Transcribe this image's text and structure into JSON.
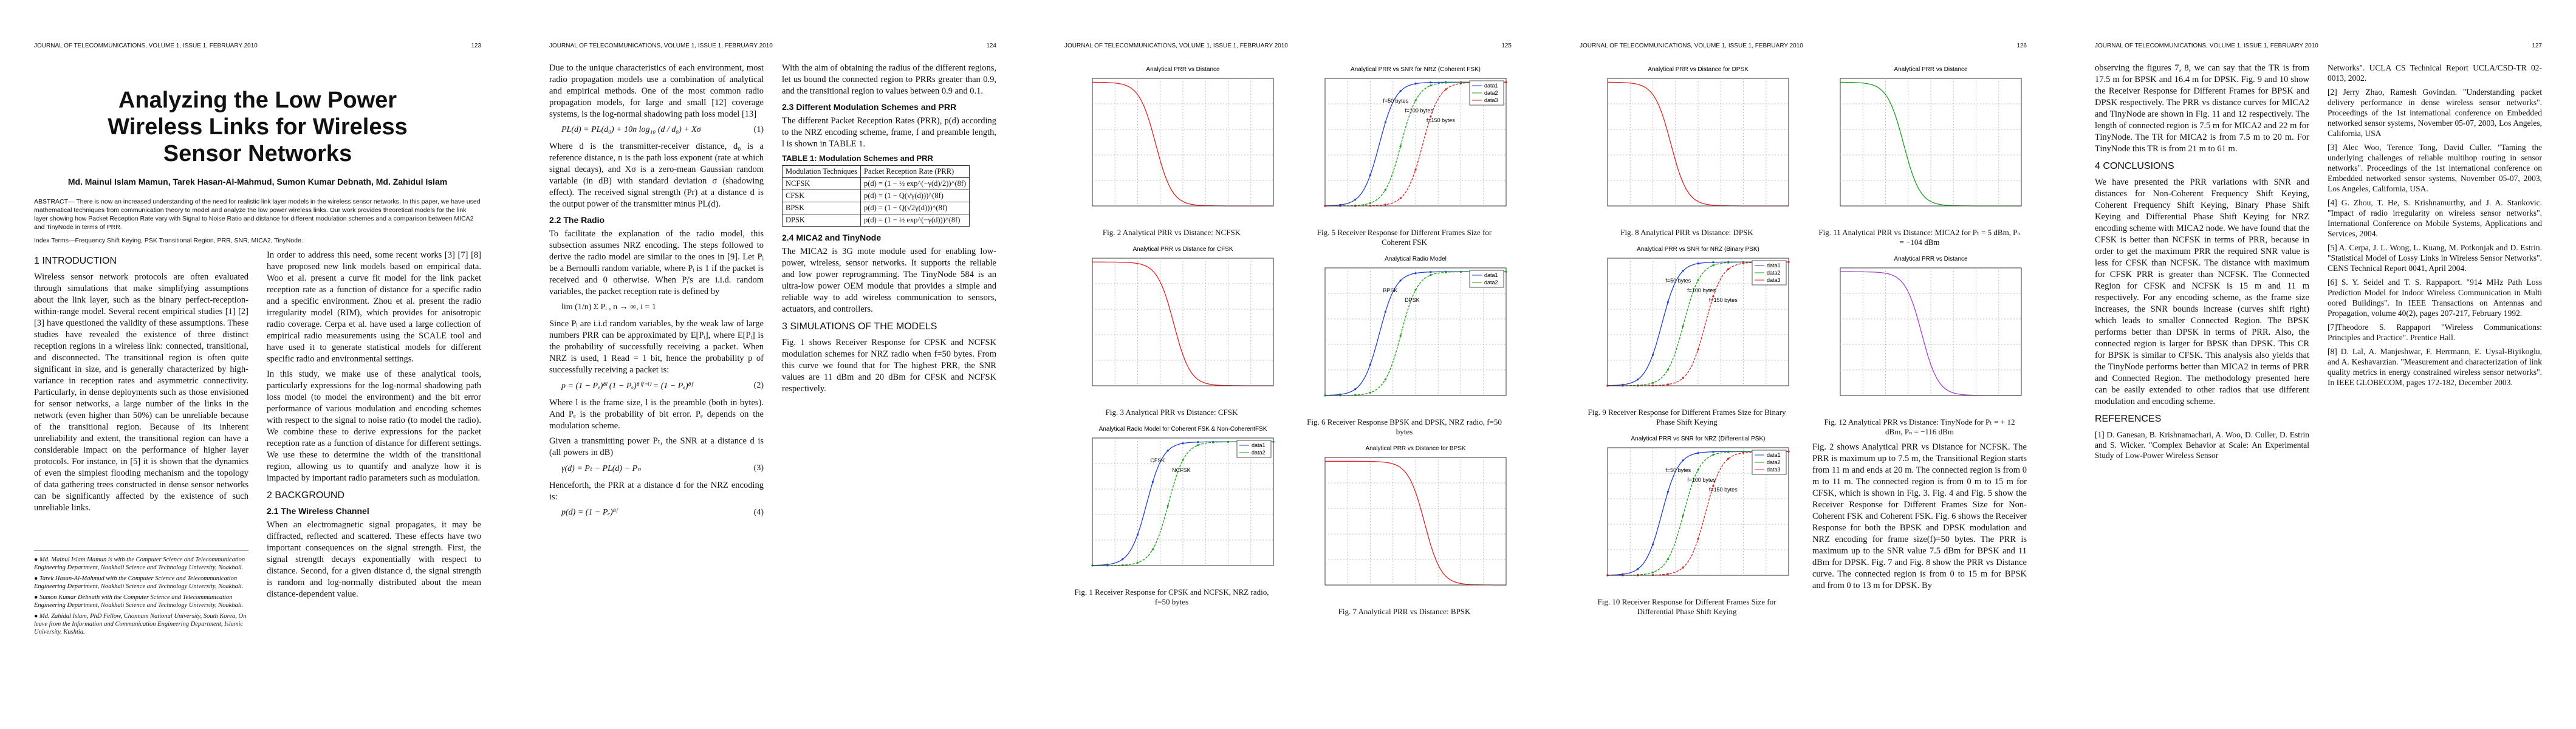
{
  "pages": [
    {
      "header": "JOURNAL OF TELECOMMUNICATIONS, VOLUME 1, ISSUE 1, FEBRUARY 2010",
      "page_number": "123",
      "title": "Analyzing the Low Power Wireless Links for Wireless Sensor Networks",
      "authors": "Md. Mainul Islam Mamun, Tarek Hasan-Al-Mahmud, Sumon Kumar Debnath, Md. Zahidul Islam",
      "abstract": "ABSTRACT— There is now an increased understanding of the need for realistic link layer models in the wireless sensor networks. In this paper, we have used mathematical techniques from communication theory to model and analyze the low power wireless links. Our work provides theoretical models for the link layer showing how Packet Reception Rate vary with Signal to Noise Ratio and distance for different modulation schemes and a comparison between MICA2 and TinyNode in terms of PRR.",
      "index_terms": "Index Terms—Frequency Shift Keying, PSK Transitional Region, PRR, SNR, MICA2, TinyNode.",
      "columns": [
        [
          {
            "heading": "1 INTRODUCTION"
          },
          {
            "paragraph": "Wireless sensor network protocols are often evaluated through simulations that make simplifying assumptions about the link layer, such as the binary perfect-reception-within-range model. Several recent empirical studies [1] [2] [3] have questioned the validity of these assumptions. These studies have revealed the existence of three distinct reception regions in a wireless link: connected, transitional, and disconnected. The transitional region is often quite significant in size, and is generally characterized by high-variance in reception rates and asymmetric connectivity. Particularly, in dense deployments such as those envisioned for sensor networks, a large number of the links in the network (even higher than 50%) can be unreliable because of the transitional region. Because of its inherent unreliability and extent, the transitional region can have a considerable impact on the performance of higher layer protocols. For instance, in [5] it is shown that the dynamics of even the simplest flooding mechanism and the topology of data gathering trees constructed in dense sensor networks can be significantly affected by the existence of such unreliable links."
          },
          {
            "footnotes": [
              "● Md. Mainul Islam Mamun is with the Computer Science and Telecommunication Engineering Department, Noakhali Science and Technology University, Noakhali.",
              "● Tarek Hasan-Al-Mahmud with the Computer Science and Telecommunication Engineering Department, Noakhali Science and Technology University, Noakhali.",
              "● Sumon Kumar Debnath with the Computer Science and Telecommunication Engineering Department, Noakhali Science and Technology University, Noakhali.",
              "● Md. Zahidul Islam, PhD Fellow, Chonnam National University, South Korea, On leave from the Information and Communication Engineering Department, Islamic University, Kushtia."
            ]
          }
        ],
        [
          {
            "paragraph": "In order to address this need, some recent works [3] [7] [8] have proposed new link models based on empirical data. Woo et al. present a curve fit model for the link packet reception rate as a function of distance for a specific radio and a specific environment. Zhou et al. present the radio irregularity model (RIM), which provides for anisotropic radio coverage. Cerpa et al. have used a large collection of empirical radio measurements using the SCALE tool and have used it to generate statistical models for different specific radio and environmental settings."
          },
          {
            "paragraph": "In this study, we make use of these analytical tools, particularly expressions for the log-normal shadowing path loss model (to model the environment) and the bit error performance of various modulation and encoding schemes with respect to the signal to noise ratio (to model the radio). We combine these to derive expressions for the packet reception rate as a function of distance for different settings. We use these to determine the width of the transitional region, allowing us to quantify and analyze how it is impacted by important radio parameters such as modulation."
          },
          {
            "heading": "2 BACKGROUND"
          },
          {
            "subheading": "2.1 The Wireless Channel"
          },
          {
            "paragraph": "When an electromagnetic signal propagates, it may be diffracted, reflected and scattered. These effects have two important consequences on the signal strength. First, the signal strength decays exponentially with respect to distance. Second, for a given distance d, the signal strength is random and log-normally distributed about the mean distance-dependent value."
          }
        ]
      ]
    },
    {
      "header": "JOURNAL OF TELECOMMUNICATIONS, VOLUME 1, ISSUE 1, FEBRUARY 2010",
      "page_number": "124",
      "columns": [
        [
          {
            "paragraph": "Due to the unique characteristics of each environment, most radio propagation models use a combination of analytical and empirical methods. One of the most common radio propagation models, for large and small [12] coverage systems, is the log-normal shadowing path loss model [13]"
          },
          {
            "equation": "PL(d) = PL(d₀) + 10n log₁₀ (d / d₀) + Xσ",
            "number": "(1)"
          },
          {
            "paragraph": "Where d is the transmitter-receiver distance, d₀ is a reference distance, n is the path loss exponent (rate at which signal decays), and Xσ is a zero-mean Gaussian random variable (in dB) with standard deviation σ (shadowing effect). The received signal strength (Pr) at a distance d is the output power of the transmitter minus PL(d)."
          },
          {
            "subheading": "2.2 The Radio"
          },
          {
            "paragraph": "To facilitate the explanation of the radio model, this subsection assumes NRZ encoding. The steps followed to derive the radio model are similar to the ones in [9]. Let Pᵢ be a Bernoulli random variable, where Pᵢ is 1 if the packet is received and 0 otherwise. When Pᵢ's are i.i.d. random variables, the packet reception rate is defined by"
          },
          {
            "equation": "lim (1/n) Σ Pᵢ , n → ∞, i = 1"
          },
          {
            "paragraph": "Since Pᵢ are i.i.d random variables, by the weak law of large numbers PRR can be approximated by E[Pᵢ], where E[Pᵢ] is the probability of successfully receiving a packet. When NRZ is used, 1 Read = 1 bit, hence the probability p of successfully receiving a packet is:"
          },
          {
            "equation": "p = (1 − Pₑ)⁸ˡ (1 − Pₑ)⁸⁽ᶠ⁻ˡ⁾ = (1 − Pₑ)⁸ᶠ",
            "number": "(2)"
          },
          {
            "paragraph": "Where l is the frame size, l is the preamble (both in bytes). And Pₑ is the probability of bit error. Pₑ depends on the modulation scheme."
          },
          {
            "paragraph": "Given a transmitting power Pₜ, the SNR at a distance d is (all powers in dB)"
          },
          {
            "equation": "γ(d) = Pₜ − PL(d) − Pₙ",
            "number": "(3)"
          },
          {
            "paragraph": "Henceforth, the PRR at a distance d for the NRZ encoding is:"
          },
          {
            "equation": "p(d) = (1 − Pₑ)⁸ᶠ",
            "number": "(4)"
          }
        ],
        [
          {
            "paragraph": "With the aim of obtaining the radius of the different regions, let us bound the connected region to PRRs greater than 0.9, and the transitional region to values between 0.9 and 0.1."
          },
          {
            "subheading": "2.3 Different Modulation Schemes and PRR"
          },
          {
            "paragraph": "The different Packet Reception Rates (PRR), p(d) according to the NRZ encoding scheme, frame, f and preamble length, l is shown in TABLE 1."
          },
          {
            "table": {
              "caption": "TABLE 1: Modulation Schemes and PRR",
              "rows": [
                [
                  "Modulation Techniques",
                  "Packet Reception Rate (PRR)"
                ],
                [
                  "NCFSK",
                  "p(d) = (1 − ½ exp^(−γ(d)/2))^(8f)"
                ],
                [
                  "CFSK",
                  "p(d) = (1 − Q(√γ(d)))^(8f)"
                ],
                [
                  "BPSK",
                  "p(d) = (1 − Q(√2γ(d)))^(8f)"
                ],
                [
                  "DPSK",
                  "p(d) = (1 − ½ exp^(−γ(d)))^(8f)"
                ]
              ]
            }
          },
          {
            "subheading": "2.4 MICA2 and TinyNode"
          },
          {
            "paragraph": "The MICA2 is 3G mote module used for enabling low-power, wireless, sensor networks. It supports the reliable and low power reprogramming. The TinyNode 584 is an ultra-low power OEM module that provides a simple and reliable way to add wireless communication to sensors, actuators, and controllers."
          },
          {
            "heading": "3 SIMULATIONS OF THE MODELS"
          },
          {
            "paragraph": "Fig. 1 shows Receiver Response for CPSK and NCFSK modulation schemes for NRZ radio when f=50 bytes. From this curve we found that for The highest PRR, the SNR values are 11 dBm and 20 dBm for CFSK and NCFSK respectively."
          }
        ]
      ]
    },
    {
      "header": "JOURNAL OF TELECOMMUNICATIONS, VOLUME 1, ISSUE 1, FEBRUARY 2010",
      "page_number": "125",
      "columns": [
        [
          {
            "figure": {
              "title": "Analytical PRR vs Distance",
              "caption": "Fig. 2 Analytical PRR vs Distance: NCFSK"
            }
          },
          {
            "figure": {
              "title": "Analytical PRR vs Distance for CFSK",
              "caption": "Fig. 3 Analytical PRR vs Distance: CFSK"
            }
          },
          {
            "figure": {
              "title": "Analytical Radio Model for Coherent FSK & Non-CoherentFSK",
              "legend": [
                "data1",
                "data2"
              ],
              "labels": [
                "CFSK",
                "NCFSK"
              ],
              "caption": "Fig. 1 Receiver Response for CPSK and NCFSK, NRZ radio, f=50 bytes"
            }
          }
        ],
        [
          {
            "figure": {
              "title": "Analytical PRR vs SNR for NRZ (Coherent FSK)",
              "legend": [
                "data1",
                "data2",
                "data3"
              ],
              "labels": [
                "f=50 bytes",
                "f=100 bytes",
                "f=150 bytes"
              ],
              "caption": "Fig. 5 Receiver Response for Different Frames Size for Coherent FSK"
            }
          },
          {
            "figure": {
              "title": "Analytical Radio Model",
              "legend": [
                "data1",
                "data2"
              ],
              "labels": [
                "BPSK",
                "DPSK"
              ],
              "caption": "Fig. 6 Receiver Response BPSK and DPSK, NRZ radio, f=50 bytes"
            }
          },
          {
            "figure": {
              "title": "Analytical PRR vs Distance for BPSK",
              "caption": "Fig. 7 Analytical PRR vs Distance: BPSK"
            }
          }
        ]
      ]
    },
    {
      "header": "JOURNAL OF TELECOMMUNICATIONS, VOLUME 1, ISSUE 1, FEBRUARY 2010",
      "page_number": "126",
      "columns": [
        [
          {
            "figure": {
              "title": "Analytical PRR vs Distance for DPSK",
              "caption": "Fig. 8 Analytical PRR vs Distance: DPSK"
            }
          },
          {
            "figure": {
              "title": "Analytical PRR vs SNR for NRZ (Binary PSK)",
              "legend": [
                "data1",
                "data2",
                "data3"
              ],
              "labels": [
                "f=50 bytes",
                "f=100 bytes",
                "f=150 bytes"
              ],
              "caption": "Fig. 9 Receiver Response for Different Frames Size for Binary Phase Shift Keying"
            }
          },
          {
            "figure": {
              "title": "Analytical PRR vs SNR for NRZ (Differential PSK)",
              "legend": [
                "data1",
                "data2",
                "data3"
              ],
              "labels": [
                "f=50 bytes",
                "f=100 bytes",
                "f=150 bytes"
              ],
              "caption": "Fig. 10 Receiver Response for Different Frames Size for Differential Phase Shift Keying"
            }
          }
        ],
        [
          {
            "figure": {
              "title": "Analytical PRR vs Distance",
              "caption": "Fig. 11 Analytical PRR vs Distance: MICA2 for Pₜ = 5 dBm, Pₙ = −104 dBm"
            }
          },
          {
            "figure": {
              "title": "Analytical PRR vs Distance",
              "caption": "Fig. 12 Analytical PRR vs Distance: TinyNode for Pₜ = + 12 dBm, Pₙ = −116 dBm"
            }
          },
          {
            "paragraph": "Fig. 2 shows Analytical PRR vs Distance for NCFSK. The PRR is maximum up to 7.5 m, the Transitional Region starts from 11 m and ends at 20 m. The connected region is from 0 m to 11 m. The connected region is from 0 m to 15 m for CFSK, which is shown in Fig. 3. Fig. 4 and Fig. 5 show the Receiver Response for Different Frames Size for Non-Coherent FSK and Coherent FSK. Fig. 6 shows the Receiver Response for both the BPSK and DPSK modulation and NRZ encoding for frame size(f)=50 bytes. The PRR is maximum up to the SNR value 7.5 dBm for BPSK and 11 dBm for DPSK. Fig. 7 and Fig. 8 show the PRR vs Distance curve. The connected region is from 0 to 15 m for BPSK and from 0 to 13 m for DPSK. By"
          }
        ]
      ]
    },
    {
      "header": "JOURNAL OF TELECOMMUNICATIONS, VOLUME 1, ISSUE 1, FEBRUARY 2010",
      "page_number": "127",
      "columns": [
        [
          {
            "paragraph": "observing the figures 7, 8, we can say that the TR is from 17.5 m for BPSK and 16.4 m for DPSK. Fig. 9 and 10 show the Receiver Response for Different Frames for BPSK and DPSK respectively. The PRR vs distance curves for MICA2 and TinyNode are shown in Fig. 11 and 12 respectively. The length of connected region is 7.5 m for MICA2 and 22 m for TinyNode. The TR for MICA2 is from 7.5 m to 20 m. For TinyNode this TR is from 21 m to 61 m."
          },
          {
            "heading": "4 CONCLUSIONS"
          },
          {
            "paragraph": "We have presented the PRR variations with SNR and distances for Non-Coherent Frequency Shift Keying, Coherent Frequency Shift Keying, Binary Phase Shift Keying and Differential Phase Shift Keying for NRZ encoding scheme with MICA2 node. We have found that the CFSK is better than NCFSK in terms of PRR, because in order to get the maximum PRR the required SNR value is less for CFSK than NCFSK. The distance with maximum for CFSK PRR is greater than NCFSK. The Connected Region for CFSK and NCFSK is 15 m and 11 m respectively. For any encoding scheme, as the frame size increases, the SNR bounds increase (curves shift right) which leads to smaller Connected Region. The BPSK performs better than DPSK in terms of PRR. Also, the connected region is larger for BPSK than DPSK. This CR for BPSK is similar to CFSK. This analysis also yields that the TinyNode performs better than MICA2 in terms of PRR and Connected Region. The methodology presented here can be easily extended to other radios that use different modulation and encoding scheme."
          },
          {
            "heading": "REFERENCES"
          },
          {
            "reference": "[1] D. Ganesan, B. Krishnamachari, A. Woo, D. Culler, D. Estrin and S. Wicker. \"Complex Behavior at Scale: An Experimental Study of Low-Power Wireless Sensor"
          }
        ],
        [
          {
            "reference": "Networks\". UCLA CS Technical Report UCLA/CSD-TR 02-0013, 2002."
          },
          {
            "reference": "[2] Jerry Zhao, Ramesh Govindan. \"Understanding packet delivery performance in dense wireless sensor networks\". Proceedings of the 1st international conference on Embedded networked sensor systems, November 05-07, 2003, Los Angeles, California, USA"
          },
          {
            "reference": "[3] Alec Woo, Terence Tong, David Culler. \"Taming the underlying challenges of reliable multihop routing in sensor networks\". Proceedings of the 1st international conference on Embedded networked sensor systems, November 05-07, 2003, Los Angeles, California, USA."
          },
          {
            "reference": "[4] G. Zhou, T. He, S. Krishnamurthy, and J. A. Stankovic. \"Impact of radio irregularity on wireless sensor networks\". International Conference on Mobile Systems, Applications and Services, 2004."
          },
          {
            "reference": "[5] A. Cerpa, J. L. Wong, L. Kuang, M. Potkonjak and D. Estrin. \"Statistical Model of Lossy Links in Wireless Sensor Networks\". CENS Technical Report 0041, April 2004."
          },
          {
            "reference": "[6] S. Y. Seidel and T. S. Rappaport. \"914 MHz Path Loss Prediction Model for Indoor Wireless Communication in Multi oored Buildings\". In IEEE Transactions on Antennas and Propagation, volume 40(2), pages 207-217, February 1992."
          },
          {
            "reference": "[7]Theodore S. Rappaport \"Wireless Communications: Principles and Practice\". Prentice Hall."
          },
          {
            "reference": "[8] D. Lal, A. Manjeshwar, F. Herrmann, E. Uysal-Biyikoglu, and A. Keshavarzian. \"Measurement and characterization of link quality metrics in energy constrained wireless sensor networks\". In IEEE GLOBECOM, pages 172-182, December 2003."
          }
        ]
      ]
    }
  ]
}
